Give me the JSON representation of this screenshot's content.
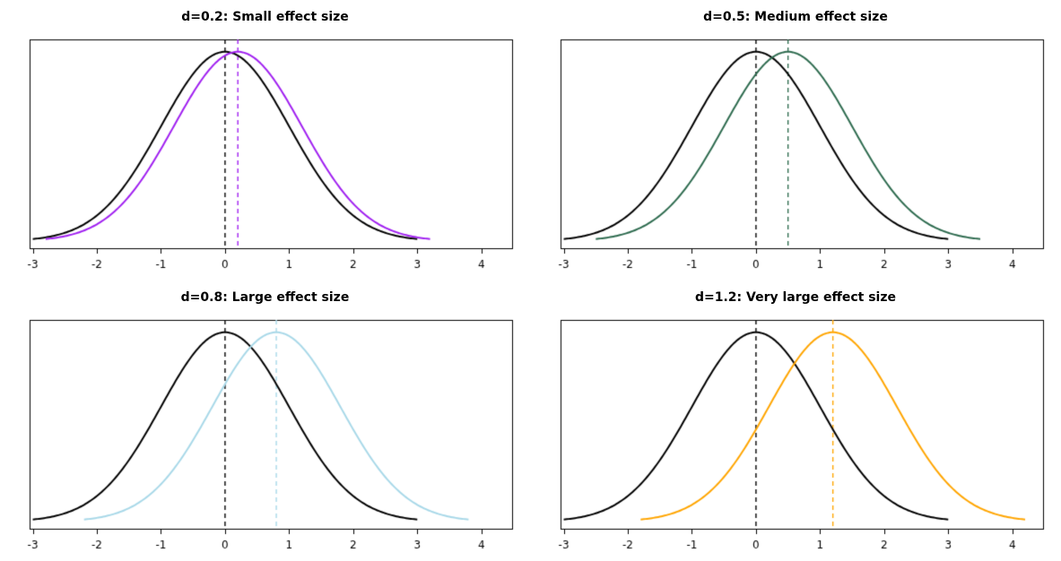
{
  "chart_data": [
    {
      "type": "line",
      "title": "d=0.2: Small effect size",
      "d": 0.2,
      "xlim": [
        -3.05,
        4.48
      ],
      "ylim": [
        -0.015,
        0.425
      ],
      "x_ticks": [
        -3,
        -2,
        -1,
        0,
        1,
        2,
        3,
        4
      ],
      "series": [
        {
          "name": "standard-normal-curve",
          "mean": 0,
          "sd": 1,
          "color": "#000000"
        },
        {
          "name": "shifted-normal-curve",
          "mean": 0.2,
          "sd": 1,
          "color": "#A020F0"
        }
      ],
      "vlines": [
        {
          "x": 0,
          "color": "#000000",
          "style": "dashed"
        },
        {
          "x": 0.2,
          "color": "#A020F0",
          "style": "dashed"
        }
      ]
    },
    {
      "type": "line",
      "title": "d=0.5: Medium effect size",
      "d": 0.5,
      "xlim": [
        -3.05,
        4.48
      ],
      "ylim": [
        -0.015,
        0.425
      ],
      "x_ticks": [
        -3,
        -2,
        -1,
        0,
        1,
        2,
        3,
        4
      ],
      "series": [
        {
          "name": "standard-normal-curve",
          "mean": 0,
          "sd": 1,
          "color": "#000000"
        },
        {
          "name": "shifted-normal-curve",
          "mean": 0.5,
          "sd": 1,
          "color": "#2E6B4F"
        }
      ],
      "vlines": [
        {
          "x": 0,
          "color": "#000000",
          "style": "dashed"
        },
        {
          "x": 0.5,
          "color": "#2E6B4F",
          "style": "dashed"
        }
      ]
    },
    {
      "type": "line",
      "title": "d=0.8: Large effect size",
      "d": 0.8,
      "xlim": [
        -3.05,
        4.48
      ],
      "ylim": [
        -0.015,
        0.425
      ],
      "x_ticks": [
        -3,
        -2,
        -1,
        0,
        1,
        2,
        3,
        4
      ],
      "series": [
        {
          "name": "standard-normal-curve",
          "mean": 0,
          "sd": 1,
          "color": "#000000"
        },
        {
          "name": "shifted-normal-curve",
          "mean": 0.8,
          "sd": 1,
          "color": "#A8D8E8"
        }
      ],
      "vlines": [
        {
          "x": 0,
          "color": "#000000",
          "style": "dashed"
        },
        {
          "x": 0.8,
          "color": "#A8D8E8",
          "style": "dashed"
        }
      ]
    },
    {
      "type": "line",
      "title": "d=1.2: Very large effect size",
      "d": 1.2,
      "xlim": [
        -3.05,
        4.48
      ],
      "ylim": [
        -0.015,
        0.425
      ],
      "x_ticks": [
        -3,
        -2,
        -1,
        0,
        1,
        2,
        3,
        4
      ],
      "series": [
        {
          "name": "standard-normal-curve",
          "mean": 0,
          "sd": 1,
          "color": "#000000"
        },
        {
          "name": "shifted-normal-curve",
          "mean": 1.2,
          "sd": 1,
          "color": "#FFA500"
        }
      ],
      "vlines": [
        {
          "x": 0,
          "color": "#000000",
          "style": "dashed"
        },
        {
          "x": 1.2,
          "color": "#FFA500",
          "style": "dashed"
        }
      ]
    }
  ]
}
